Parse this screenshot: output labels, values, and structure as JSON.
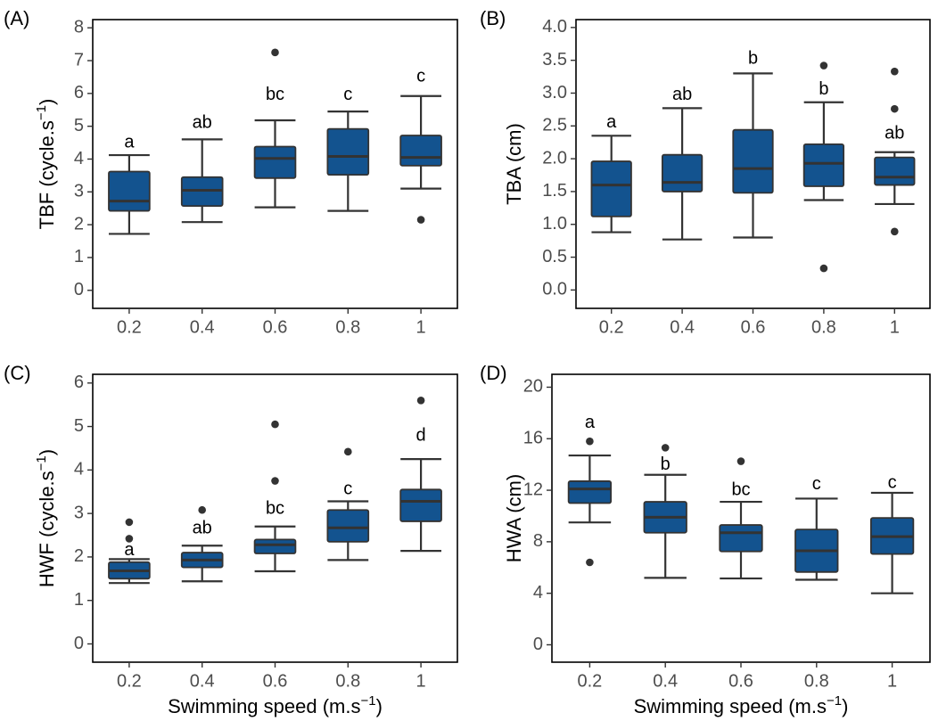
{
  "colors": {
    "box_fill": "#13538f",
    "box_stroke": "#333333",
    "outlier": "#333333",
    "frame": "#000000"
  },
  "chart_data": [
    {
      "type": "box",
      "panel_label": "(A)",
      "ylabel": "TBF (cycle.s",
      "ylabel_sup": "−1",
      "ylabel_close": ")",
      "xlabel": "",
      "xlabel_sup": "",
      "xlabel_close": "",
      "ylim": [
        -0.55,
        8.25
      ],
      "yticks": [
        0,
        1,
        2,
        3,
        4,
        5,
        6,
        7,
        8
      ],
      "ytick_labels": [
        "0",
        "1",
        "2",
        "3",
        "4",
        "5",
        "6",
        "7",
        "8"
      ],
      "categories": [
        "0.2",
        "0.4",
        "0.6",
        "0.8",
        "1"
      ],
      "boxes": [
        {
          "whislo": 1.72,
          "q1": 2.42,
          "med": 2.72,
          "q3": 3.62,
          "whishi": 4.12,
          "fliers": [],
          "letter": "a",
          "letter_y": 4.5
        },
        {
          "whislo": 2.08,
          "q1": 2.57,
          "med": 3.05,
          "q3": 3.45,
          "whishi": 4.6,
          "fliers": [],
          "letter": "ab",
          "letter_y": 5.1
        },
        {
          "whislo": 2.53,
          "q1": 3.42,
          "med": 4.02,
          "q3": 4.38,
          "whishi": 5.18,
          "fliers": [
            7.25
          ],
          "letter": "bc",
          "letter_y": 5.95
        },
        {
          "whislo": 2.42,
          "q1": 3.52,
          "med": 4.08,
          "q3": 4.92,
          "whishi": 5.45,
          "fliers": [],
          "letter": "c",
          "letter_y": 5.95
        },
        {
          "whislo": 3.1,
          "q1": 3.8,
          "med": 4.05,
          "q3": 4.72,
          "whishi": 5.92,
          "fliers": [
            2.15
          ],
          "letter": "c",
          "letter_y": 6.5
        }
      ]
    },
    {
      "type": "box",
      "panel_label": "(B)",
      "ylabel": "TBA (cm)",
      "ylabel_sup": "",
      "ylabel_close": "",
      "xlabel": "",
      "xlabel_sup": "",
      "xlabel_close": "",
      "ylim": [
        -0.28,
        4.12
      ],
      "yticks": [
        0,
        0.5,
        1,
        1.5,
        2,
        2.5,
        3,
        3.5,
        4
      ],
      "ytick_labels": [
        "0.0",
        "0.5",
        "1.0",
        "1.5",
        "2.0",
        "2.5",
        "3.0",
        "3.5",
        "4.0"
      ],
      "categories": [
        "0.2",
        "0.4",
        "0.6",
        "0.8",
        "1"
      ],
      "boxes": [
        {
          "whislo": 0.88,
          "q1": 1.12,
          "med": 1.6,
          "q3": 1.96,
          "whishi": 2.35,
          "fliers": [],
          "letter": "a",
          "letter_y": 2.55
        },
        {
          "whislo": 0.77,
          "q1": 1.5,
          "med": 1.64,
          "q3": 2.06,
          "whishi": 2.77,
          "fliers": [],
          "letter": "ab",
          "letter_y": 2.97
        },
        {
          "whislo": 0.8,
          "q1": 1.48,
          "med": 1.85,
          "q3": 2.44,
          "whishi": 3.3,
          "fliers": [],
          "letter": "b",
          "letter_y": 3.52
        },
        {
          "whislo": 1.37,
          "q1": 1.58,
          "med": 1.93,
          "q3": 2.22,
          "whishi": 2.86,
          "fliers": [
            3.42,
            0.33
          ],
          "letter": "b",
          "letter_y": 3.05
        },
        {
          "whislo": 1.31,
          "q1": 1.6,
          "med": 1.72,
          "q3": 2.02,
          "whishi": 2.1,
          "fliers": [
            3.33,
            2.76,
            0.89
          ],
          "letter": "ab",
          "letter_y": 2.38
        }
      ]
    },
    {
      "type": "box",
      "panel_label": "(C)",
      "ylabel": "HWF (cycle.s",
      "ylabel_sup": "−1",
      "ylabel_close": ")",
      "xlabel": "Swimming speed (m.s",
      "xlabel_sup": "−1",
      "xlabel_close": ")",
      "ylim": [
        -0.42,
        6.2
      ],
      "yticks": [
        0,
        1,
        2,
        3,
        4,
        5,
        6
      ],
      "ytick_labels": [
        "0",
        "1",
        "2",
        "3",
        "4",
        "5",
        "6"
      ],
      "categories": [
        "0.2",
        "0.4",
        "0.6",
        "0.8",
        "1"
      ],
      "boxes": [
        {
          "whislo": 1.4,
          "q1": 1.5,
          "med": 1.68,
          "q3": 1.88,
          "whishi": 1.95,
          "fliers": [
            2.8,
            2.42
          ],
          "letter": "a",
          "letter_y": 2.15
        },
        {
          "whislo": 1.44,
          "q1": 1.76,
          "med": 1.93,
          "q3": 2.1,
          "whishi": 2.26,
          "fliers": [
            3.08
          ],
          "letter": "ab",
          "letter_y": 2.65
        },
        {
          "whislo": 1.67,
          "q1": 2.08,
          "med": 2.28,
          "q3": 2.4,
          "whishi": 2.7,
          "fliers": [
            5.05,
            3.75
          ],
          "letter": "bc",
          "letter_y": 3.1
        },
        {
          "whislo": 1.93,
          "q1": 2.35,
          "med": 2.67,
          "q3": 3.08,
          "whishi": 3.28,
          "fliers": [
            4.42
          ],
          "letter": "c",
          "letter_y": 3.55
        },
        {
          "whislo": 2.14,
          "q1": 2.82,
          "med": 3.28,
          "q3": 3.55,
          "whishi": 4.25,
          "fliers": [
            5.6
          ],
          "letter": "d",
          "letter_y": 4.78
        }
      ]
    },
    {
      "type": "box",
      "panel_label": "(D)",
      "ylabel": "HWA (cm)",
      "ylabel_sup": "",
      "ylabel_close": "",
      "xlabel": "Swimming speed (m.s",
      "xlabel_sup": "−1",
      "xlabel_close": ")",
      "ylim": [
        -1.35,
        21.0
      ],
      "yticks": [
        0,
        4,
        8,
        12,
        16,
        20
      ],
      "ytick_labels": [
        "0",
        "4",
        "8",
        "12",
        "16",
        "20"
      ],
      "categories": [
        "0.2",
        "0.4",
        "0.6",
        "0.8",
        "1"
      ],
      "boxes": [
        {
          "whislo": 9.5,
          "q1": 11.0,
          "med": 12.1,
          "q3": 12.7,
          "whishi": 14.7,
          "fliers": [
            15.8,
            6.4
          ],
          "letter": "a",
          "letter_y": 17.2
        },
        {
          "whislo": 5.2,
          "q1": 8.7,
          "med": 9.9,
          "q3": 11.1,
          "whishi": 13.2,
          "fliers": [
            15.3
          ],
          "letter": "b",
          "letter_y": 13.95
        },
        {
          "whislo": 5.15,
          "q1": 7.25,
          "med": 8.7,
          "q3": 9.3,
          "whishi": 11.1,
          "fliers": [
            14.25
          ],
          "letter": "bc",
          "letter_y": 12.0
        },
        {
          "whislo": 5.05,
          "q1": 5.65,
          "med": 7.3,
          "q3": 8.95,
          "whishi": 11.35,
          "fliers": [],
          "letter": "c",
          "letter_y": 12.45
        },
        {
          "whislo": 4.0,
          "q1": 7.05,
          "med": 8.4,
          "q3": 9.85,
          "whishi": 11.8,
          "fliers": [],
          "letter": "c",
          "letter_y": 12.55
        }
      ]
    }
  ]
}
